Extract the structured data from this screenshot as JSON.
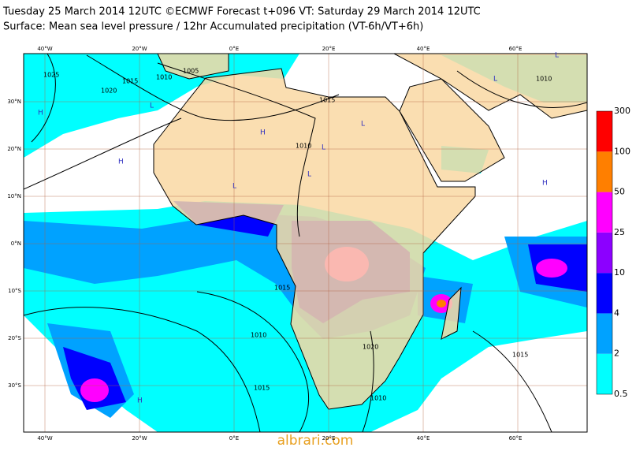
{
  "header": {
    "line1": "Tuesday 25 March 2014 12UTC ©ECMWF Forecast t+096 VT: Saturday 29 March 2014 12UTC",
    "line2": "Surface: Mean sea level pressure / 12hr Accumulated precipitation (VT-6h/VT+6h)"
  },
  "map": {
    "lon_labels": [
      "40°W",
      "20°W",
      "0°E",
      "20°E",
      "40°E",
      "60°E"
    ],
    "lat_labels": [
      "30°N",
      "20°N",
      "10°N",
      "0°N",
      "10°S",
      "20°S",
      "30°S"
    ],
    "isobar_labels": [
      "1025",
      "1015",
      "1020",
      "1010",
      "1005",
      "1015",
      "1010",
      "1015",
      "1010",
      "1015",
      "1020",
      "1010",
      "1015",
      "1010"
    ],
    "pressure_centres": [
      "H",
      "L",
      "H",
      "L",
      "L",
      "H",
      "L",
      "L",
      "H",
      "L",
      "H",
      "L"
    ]
  },
  "colorbar": {
    "levels": [
      0.5,
      2,
      4,
      10,
      25,
      50,
      100,
      300
    ],
    "colors": [
      "#00ffff",
      "#00a2ff",
      "#0000ff",
      "#8c00ff",
      "#ff00ff",
      "#ff7f00",
      "#ff0000"
    ]
  },
  "watermark": "albrari.com"
}
